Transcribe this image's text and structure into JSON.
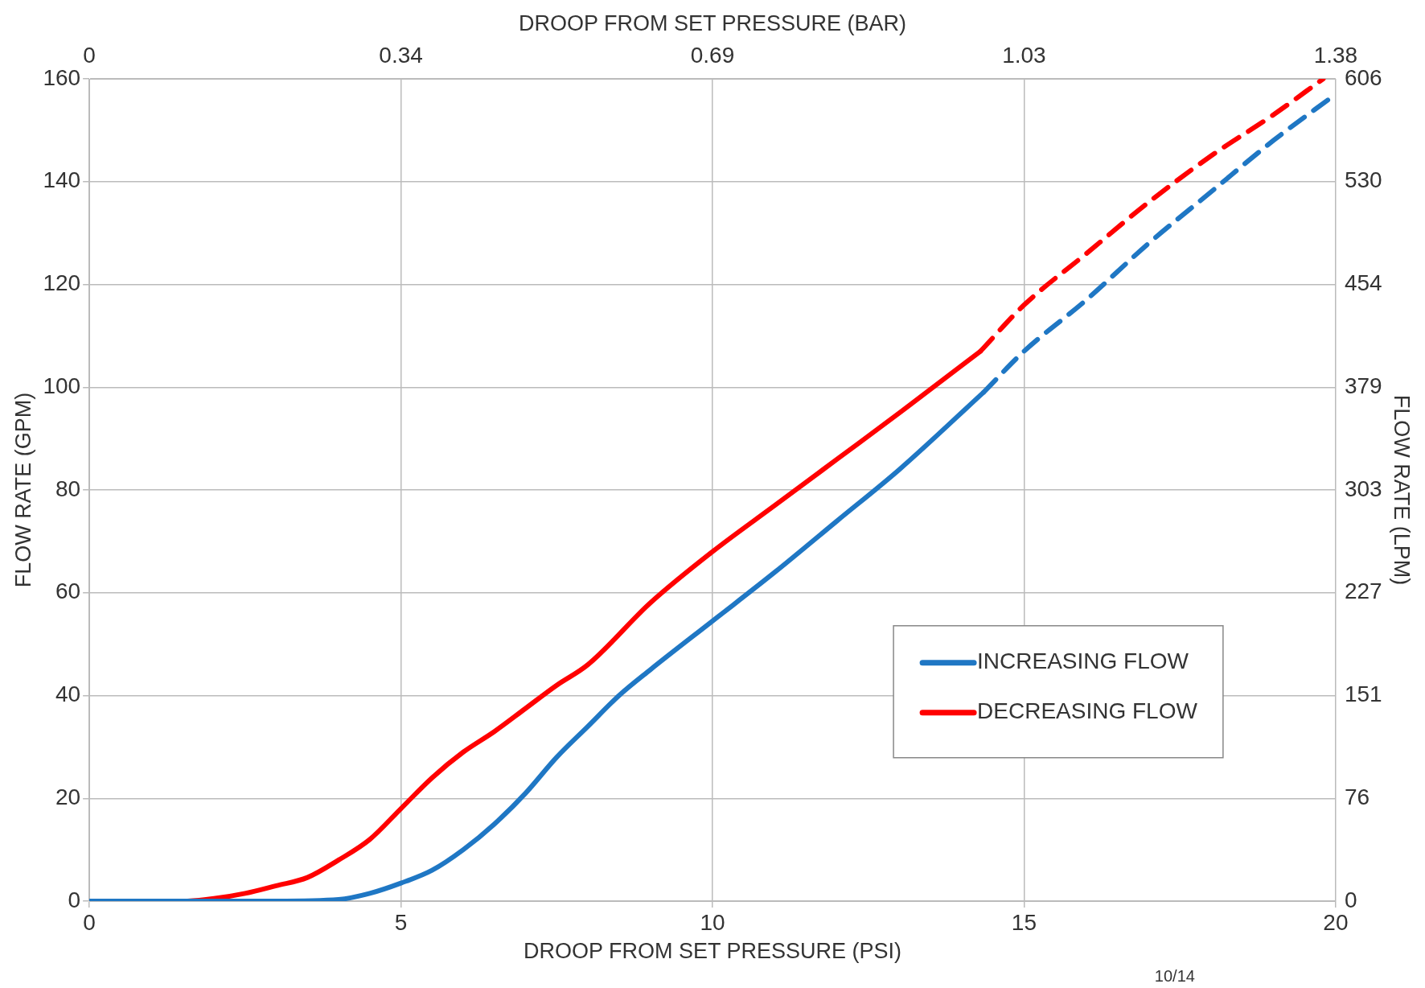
{
  "chart_data": {
    "type": "line",
    "xlabel": "DROOP FROM SET PRESSURE (PSI)",
    "x2label": "DROOP FROM SET PRESSURE (BAR)",
    "ylabel": "FLOW RATE (GPM)",
    "y2label": "FLOW RATE (LPM)",
    "xlim": [
      0,
      20
    ],
    "xticks": [
      0,
      5,
      10,
      15,
      20
    ],
    "ylim": [
      0,
      160
    ],
    "yticks": [
      0,
      20,
      40,
      60,
      80,
      100,
      120,
      140,
      160
    ],
    "x2lim": [
      0,
      1.38
    ],
    "x2ticks": [
      0,
      {
        "value": 0.345,
        "label": "0.34"
      },
      0.69,
      {
        "value": 1.035,
        "label": "1.03"
      },
      1.38
    ],
    "y2lim": [
      0,
      606
    ],
    "y2ticks": [
      0,
      {
        "value": 75.75,
        "label": "76"
      },
      {
        "value": 151.5,
        "label": "151"
      },
      {
        "value": 227.25,
        "label": "227"
      },
      303,
      {
        "value": 378.75,
        "label": "379"
      },
      {
        "value": 454.5,
        "label": "454"
      },
      {
        "value": 530.25,
        "label": "530"
      },
      606
    ],
    "grid": true,
    "legend": "right",
    "marker": "none",
    "annotations": [
      "10/14"
    ],
    "series": [
      {
        "name": "INCREASING FLOW",
        "color": "#1f77c4",
        "line_style": "solid",
        "x": [
          0,
          2,
          3,
          4,
          4.5,
          5,
          5.5,
          6,
          6.5,
          7,
          7.5,
          8,
          8.5,
          9,
          10,
          11,
          12,
          13,
          14.35
        ],
        "values": [
          0,
          0,
          0,
          0.3,
          1.5,
          3.5,
          6,
          10,
          15,
          21,
          28,
          34,
          40,
          45,
          54.5,
          64,
          74,
          84,
          99
        ]
      },
      {
        "color": "#1f77c4",
        "line_style": "dashed",
        "x": [
          14.35,
          15,
          16,
          17,
          18,
          19,
          20
        ],
        "values": [
          99,
          107,
          117,
          128,
          138,
          148,
          157
        ]
      },
      {
        "name": "DECREASING FLOW",
        "color": "#ff0000",
        "line_style": "solid",
        "x": [
          0,
          1,
          1.5,
          2,
          2.5,
          3,
          3.5,
          4,
          4.5,
          5,
          5.5,
          6,
          6.5,
          7,
          7.5,
          8,
          9,
          10,
          11,
          12,
          13,
          14.3
        ],
        "values": [
          0,
          0,
          0,
          0.5,
          1.5,
          3,
          4.6,
          8,
          12,
          18,
          24,
          29,
          33,
          37.5,
          42,
          46,
          58,
          68,
          77,
          86,
          95,
          107
        ]
      },
      {
        "color": "#ff0000",
        "line_style": "dashed",
        "x": [
          14.3,
          15,
          16,
          17,
          18,
          19,
          19.8
        ],
        "values": [
          107,
          116,
          126,
          136,
          145,
          153,
          160
        ]
      }
    ]
  }
}
